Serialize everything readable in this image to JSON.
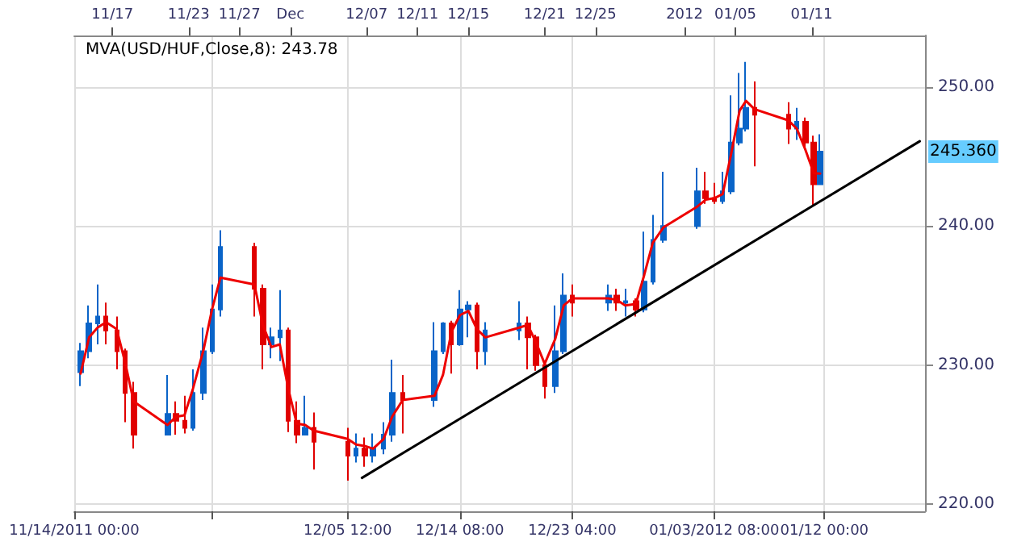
{
  "chart_data": {
    "type": "candlestick",
    "x": [
      "2011-11-14T12:00",
      "2011-11-15T04:00",
      "2011-11-15T20:00",
      "2011-11-16T12:00",
      "2011-11-17T08:00",
      "2011-11-18T00:00",
      "2011-11-18T16:00",
      "2011-11-21T08:00",
      "2011-11-22T00:00",
      "2011-11-22T16:00",
      "2011-11-23T08:00",
      "2011-11-24T04:00",
      "2011-11-24T20:00",
      "2011-11-25T12:00",
      "2011-11-28T04:00",
      "2011-11-28T20:00",
      "2011-11-29T12:00",
      "2011-11-30T04:00",
      "2011-11-30T20:00",
      "2011-12-01T12:00",
      "2011-12-02T04:00",
      "2011-12-02T20:00",
      "2011-12-05T12:00",
      "2011-12-06T04:00",
      "2011-12-06T20:00",
      "2011-12-07T12:00",
      "2011-12-08T08:00",
      "2011-12-09T00:00",
      "2011-12-09T20:00",
      "2011-12-12T08:00",
      "2011-12-13T00:00",
      "2011-12-13T16:00",
      "2011-12-14T08:00",
      "2011-12-15T00:00",
      "2011-12-15T16:00",
      "2011-12-16T08:00",
      "2011-12-19T00:00",
      "2011-12-19T16:00",
      "2011-12-20T08:00",
      "2011-12-21T00:00",
      "2011-12-21T20:00",
      "2011-12-22T12:00",
      "2011-12-23T04:00",
      "2011-12-26T00:00",
      "2011-12-26T16:00",
      "2011-12-27T08:00",
      "2011-12-28T04:00",
      "2011-12-28T20:00",
      "2011-12-29T12:00",
      "2011-12-30T08:00",
      "2012-01-02T00:00",
      "2012-01-02T16:00",
      "2012-01-03T08:00",
      "2012-01-04T00:00",
      "2012-01-04T16:00",
      "2012-01-05T08:00",
      "2012-01-05T20:00",
      "2012-01-06T12:00",
      "2012-01-09T04:00",
      "2012-01-09T20:00",
      "2012-01-10T12:00",
      "2012-01-11T04:00",
      "2012-01-11T16:00"
    ],
    "ohlc": [
      [
        229.5,
        231.6,
        228.5,
        231
      ],
      [
        231,
        234.3,
        230.5,
        233
      ],
      [
        233,
        235.8,
        231.5,
        233.5
      ],
      [
        233.5,
        234.5,
        231.5,
        232.5
      ],
      [
        232.5,
        233.5,
        229.7,
        231
      ],
      [
        231,
        231.2,
        225.9,
        228
      ],
      [
        228,
        228.8,
        224,
        225
      ],
      [
        225,
        229.3,
        225,
        226.5
      ],
      [
        226.5,
        227.4,
        225,
        226
      ],
      [
        226,
        227.8,
        225.1,
        225.5
      ],
      [
        225.5,
        229.7,
        225.3,
        228
      ],
      [
        228,
        232.7,
        227.5,
        231
      ],
      [
        231,
        235.8,
        230.8,
        234
      ],
      [
        234,
        239.7,
        233.5,
        238.5
      ],
      [
        238.5,
        238.8,
        233.5,
        235.5
      ],
      [
        235.5,
        235.8,
        229.7,
        231.5
      ],
      [
        231.5,
        232.7,
        230.5,
        232
      ],
      [
        232,
        235.4,
        230.3,
        232.5
      ],
      [
        232.5,
        232.7,
        225.2,
        226
      ],
      [
        226,
        227.4,
        224.4,
        225
      ],
      [
        225,
        227.8,
        225,
        225.5
      ],
      [
        225.5,
        226.6,
        222.5,
        224.5
      ],
      [
        224.5,
        225.5,
        221.7,
        223.5
      ],
      [
        223.5,
        225.1,
        223,
        224
      ],
      [
        224,
        224.8,
        222.7,
        223.5
      ],
      [
        223.5,
        225.1,
        223,
        224
      ],
      [
        224,
        225.9,
        223.6,
        225
      ],
      [
        225,
        230.4,
        224.5,
        228
      ],
      [
        228,
        229.3,
        225.1,
        227.5
      ],
      [
        227.5,
        233.1,
        227,
        231
      ],
      [
        231,
        233.1,
        230.8,
        233
      ],
      [
        233,
        233.2,
        229.4,
        231.5
      ],
      [
        231.5,
        235.4,
        231.4,
        234
      ],
      [
        234,
        234.6,
        232,
        234.3
      ],
      [
        234.3,
        234.5,
        229.7,
        231
      ],
      [
        231,
        233.1,
        230,
        232.5
      ],
      [
        232.5,
        234.6,
        231.8,
        233
      ],
      [
        233,
        233.5,
        229.7,
        232
      ],
      [
        232,
        232.2,
        229.6,
        230
      ],
      [
        230,
        230.1,
        227.6,
        228.5
      ],
      [
        228.5,
        234.3,
        228,
        231
      ],
      [
        231,
        236.6,
        230.8,
        235
      ],
      [
        235,
        235.8,
        233.5,
        234.5
      ],
      [
        234.5,
        235.8,
        233.9,
        235
      ],
      [
        235,
        235.5,
        233.9,
        234.5
      ],
      [
        234.5,
        235.5,
        233.5,
        234.6
      ],
      [
        234.6,
        234.8,
        233.5,
        234
      ],
      [
        234,
        239.6,
        233.8,
        236
      ],
      [
        236,
        240.8,
        235.8,
        239
      ],
      [
        239,
        243.9,
        238.8,
        240
      ],
      [
        240,
        244.2,
        239.8,
        242.5
      ],
      [
        242.5,
        243.9,
        241.6,
        242
      ],
      [
        242,
        243.1,
        241.6,
        241.8
      ],
      [
        241.8,
        243.9,
        241.6,
        242.5
      ],
      [
        242.5,
        249.4,
        242.3,
        246
      ],
      [
        246,
        251,
        245.8,
        247
      ],
      [
        247,
        251.8,
        246.8,
        248.5
      ],
      [
        248.5,
        250.4,
        244.3,
        248
      ],
      [
        248,
        248.9,
        245.9,
        247
      ],
      [
        247,
        248.5,
        246.2,
        247.5
      ],
      [
        247.5,
        247.8,
        245.5,
        246
      ],
      [
        246,
        246.5,
        241.5,
        243
      ],
      [
        243,
        246.6,
        243,
        245.36
      ]
    ],
    "colors": [
      "#0a64c8",
      "#0a64c8",
      "#0a64c8",
      "#e00000",
      "#e00000",
      "#e00000",
      "#e00000",
      "#0a64c8",
      "#e00000",
      "#e00000",
      "#0a64c8",
      "#0a64c8",
      "#0a64c8",
      "#0a64c8",
      "#e00000",
      "#e00000",
      "#0a64c8",
      "#0a64c8",
      "#e00000",
      "#e00000",
      "#0a64c8",
      "#e00000",
      "#e00000",
      "#0a64c8",
      "#e00000",
      "#0a64c8",
      "#0a64c8",
      "#0a64c8",
      "#e00000",
      "#0a64c8",
      "#0a64c8",
      "#e00000",
      "#0a64c8",
      "#0a64c8",
      "#e00000",
      "#0a64c8",
      "#0a64c8",
      "#e00000",
      "#e00000",
      "#e00000",
      "#0a64c8",
      "#0a64c8",
      "#e00000",
      "#0a64c8",
      "#e00000",
      "#0a64c8",
      "#e00000",
      "#0a64c8",
      "#0a64c8",
      "#0a64c8",
      "#0a64c8",
      "#e00000",
      "#e00000",
      "#0a64c8",
      "#0a64c8",
      "#0a64c8",
      "#0a64c8",
      "#e00000",
      "#e00000",
      "#0a64c8",
      "#e00000",
      "#e00000",
      "#0a64c8"
    ],
    "series": [
      {
        "type": "line",
        "name": "MVA(USD/HUF,Close,8): 243.78",
        "color": "#ee0000",
        "values": [
          229.4,
          232,
          232.7,
          233.1,
          232.6,
          230.2,
          227.4,
          225.7,
          226.3,
          226.4,
          228.3,
          231.1,
          234,
          236.3,
          235.8,
          232.9,
          231.3,
          231.5,
          228.3,
          225.8,
          225.7,
          225.3,
          224.7,
          224.3,
          224.2,
          224,
          224.7,
          226.3,
          227.5,
          227.8,
          229.3,
          232.4,
          233.6,
          233.9,
          232.6,
          232,
          232.7,
          232.9,
          231.6,
          230.1,
          231.9,
          234.3,
          234.8,
          234.8,
          234.7,
          234.3,
          234.4,
          236.5,
          238.8,
          239.9,
          241.4,
          241.9,
          242,
          242.3,
          245.2,
          248.3,
          249,
          248.4,
          247.6,
          247,
          245.5,
          243.8,
          243.78
        ]
      },
      {
        "type": "line",
        "color": "#000000",
        "x": [
          "2011-12-06T15:00",
          "2012-01-19T12:00"
        ],
        "values": [
          221.9,
          246.1
        ]
      }
    ],
    "xlim": [
      "2011-11-14T00:00",
      "2012-01-19T22:00"
    ],
    "xticks": [
      {
        "value": "2011-11-14T00:00",
        "label": "11/14/2011 00:00"
      },
      {
        "value": "2011-11-24T20:00",
        "label": null
      },
      {
        "value": "2011-12-05T12:00",
        "label": "12/05 12:00"
      },
      {
        "value": "2011-12-14T08:00",
        "label": "12/14 08:00"
      },
      {
        "value": "2011-12-23T04:00",
        "label": "12/23 04:00"
      },
      {
        "value": "2012-01-03T08:00",
        "label": "01/03/2012 08:00"
      },
      {
        "value": "2012-01-12T00:00",
        "label": "01/12 00:00"
      }
    ],
    "x2lim": [
      "2011-11-14T00:00",
      "2012-01-19T22:00"
    ],
    "x2ticks": [
      {
        "value": "2011-11-17",
        "label": "11/17"
      },
      {
        "value": "2011-11-23",
        "label": "11/23"
      },
      {
        "value": "2011-11-27",
        "label": "11/27"
      },
      {
        "value": "2011-12-01",
        "label": "Dec"
      },
      {
        "value": "2011-12-07",
        "label": "12/07"
      },
      {
        "value": "2011-12-11",
        "label": "12/11"
      },
      {
        "value": "2011-12-15",
        "label": "12/15"
      },
      {
        "value": "2011-12-21",
        "label": "12/21"
      },
      {
        "value": "2011-12-25",
        "label": "12/25"
      },
      {
        "value": "2012-01-01",
        "label": "2012"
      },
      {
        "value": "2012-01-05",
        "label": "01/05"
      },
      {
        "value": "2012-01-11",
        "label": "01/11"
      }
    ],
    "ylim": [
      219.5,
      253.7
    ],
    "yticks": [
      {
        "value": 220,
        "label": "220.00"
      },
      {
        "value": 230,
        "label": "230.00"
      },
      {
        "value": 240,
        "label": "240.00"
      },
      {
        "value": 250,
        "label": "250.00"
      }
    ],
    "annotations": [
      {
        "text": "245.360",
        "y": 245.36
      }
    ],
    "grid": true,
    "legend": "top left",
    "marker": "none"
  }
}
